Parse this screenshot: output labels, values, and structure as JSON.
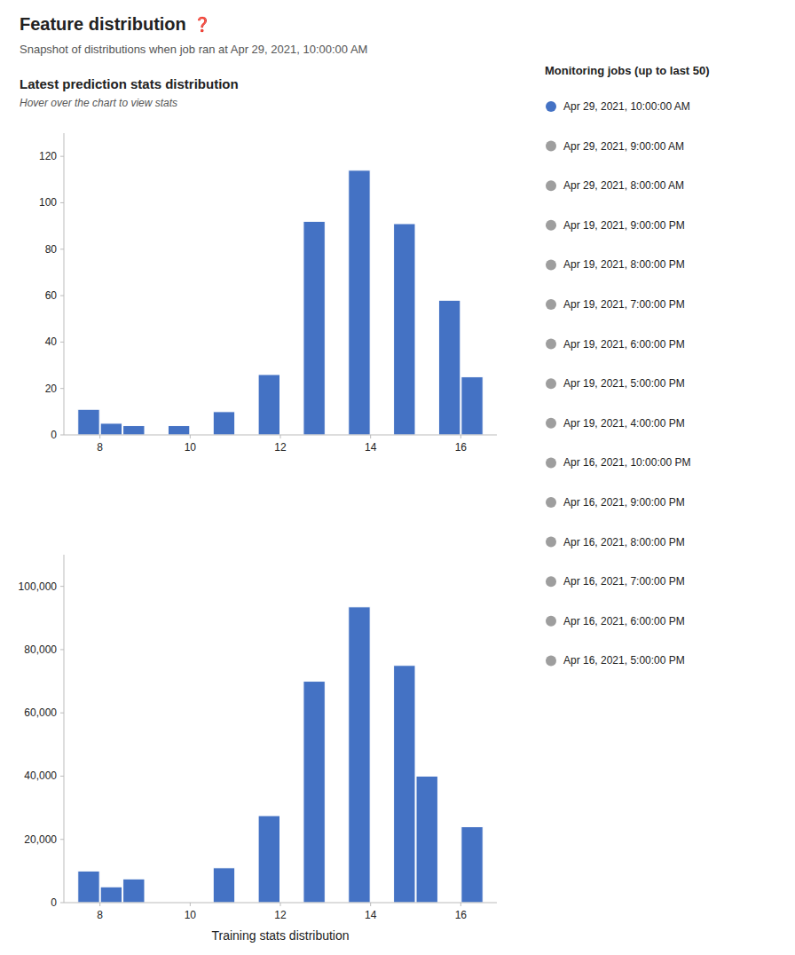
{
  "title": "Feature distribution",
  "subtitle": "Snapshot of distributions when job ran at Apr 29, 2021, 10:00:00 AM",
  "annotations": [
    "❓"
  ],
  "legend_title": "Monitoring jobs (up to last 50)",
  "legend_entries": [
    {
      "name": "Apr 29, 2021, 10:00:00 AM",
      "color": "#4472c4"
    },
    {
      "name": "Apr 29, 2021, 9:00:00 AM",
      "color": "#9e9e9e"
    },
    {
      "name": "Apr 29, 2021, 8:00:00 AM",
      "color": "#9e9e9e"
    },
    {
      "name": "Apr 19, 2021, 9:00:00 PM",
      "color": "#9e9e9e"
    },
    {
      "name": "Apr 19, 2021, 8:00:00 PM",
      "color": "#9e9e9e"
    },
    {
      "name": "Apr 19, 2021, 7:00:00 PM",
      "color": "#9e9e9e"
    },
    {
      "name": "Apr 19, 2021, 6:00:00 PM",
      "color": "#9e9e9e"
    },
    {
      "name": "Apr 19, 2021, 5:00:00 PM",
      "color": "#9e9e9e"
    },
    {
      "name": "Apr 19, 2021, 4:00:00 PM",
      "color": "#9e9e9e"
    },
    {
      "name": "Apr 16, 2021, 10:00:00 PM",
      "color": "#9e9e9e"
    },
    {
      "name": "Apr 16, 2021, 9:00:00 PM",
      "color": "#9e9e9e"
    },
    {
      "name": "Apr 16, 2021, 8:00:00 PM",
      "color": "#9e9e9e"
    },
    {
      "name": "Apr 16, 2021, 7:00:00 PM",
      "color": "#9e9e9e"
    },
    {
      "name": "Apr 16, 2021, 6:00:00 PM",
      "color": "#9e9e9e"
    },
    {
      "name": "Apr 16, 2021, 5:00:00 PM",
      "color": "#9e9e9e"
    }
  ],
  "chart_data": [
    {
      "type": "bar",
      "title": "Latest prediction stats distribution",
      "subtitle": "Hover over the chart to view stats",
      "x": [
        7.75,
        8.25,
        8.75,
        9.25,
        9.75,
        10.25,
        10.75,
        11.25,
        11.75,
        12.25,
        12.75,
        13.25,
        13.75,
        14.25,
        14.75,
        15.25,
        15.75,
        16.25
      ],
      "values": [
        11,
        5,
        4,
        0,
        4,
        0,
        10,
        0,
        26,
        0,
        92,
        0,
        114,
        0,
        91,
        0,
        58,
        25
      ],
      "color": "#4472c4",
      "xlim": [
        7.2,
        16.8
      ],
      "xticks": [
        8,
        10,
        12,
        14,
        16
      ],
      "ylim": [
        0,
        130
      ],
      "yticks": [
        0,
        20,
        40,
        60,
        80,
        100,
        120
      ],
      "grid": false
    },
    {
      "type": "bar",
      "x_label": "Training stats distribution",
      "x": [
        7.75,
        8.25,
        8.75,
        9.25,
        9.75,
        10.25,
        10.75,
        11.25,
        11.75,
        12.25,
        12.75,
        13.25,
        13.75,
        14.25,
        14.75,
        15.25,
        15.75,
        16.25
      ],
      "values": [
        10000,
        5000,
        7500,
        0,
        0,
        0,
        11000,
        0,
        27500,
        0,
        70000,
        0,
        93500,
        0,
        75000,
        40000,
        0,
        24000
      ],
      "color": "#4472c4",
      "xlim": [
        7.2,
        16.8
      ],
      "xticks": [
        8,
        10,
        12,
        14,
        16
      ],
      "ylim": [
        0,
        110000
      ],
      "yticks": [
        0,
        {
          "value": 20000,
          "label": "20,000"
        },
        {
          "value": 40000,
          "label": "40,000"
        },
        {
          "value": 60000,
          "label": "60,000"
        },
        {
          "value": 80000,
          "label": "80,000"
        },
        {
          "value": 100000,
          "label": "100,000"
        }
      ],
      "grid": false
    }
  ]
}
